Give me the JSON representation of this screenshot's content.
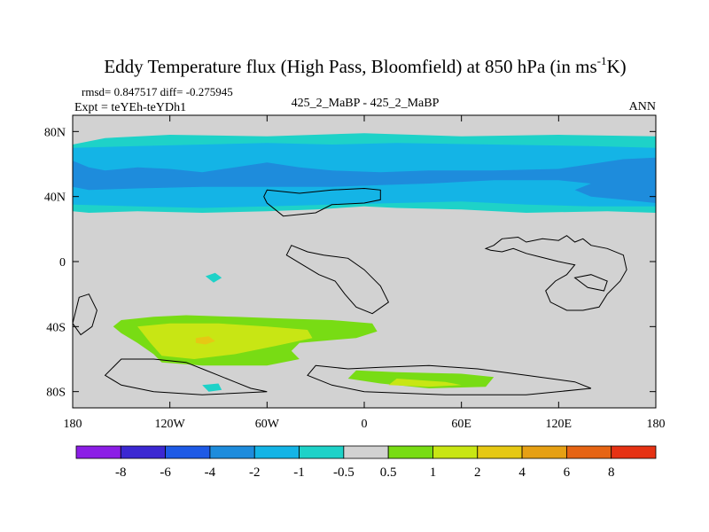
{
  "chart_data": {
    "type": "heatmap",
    "title_main": "Eddy Temperature flux (High Pass, Bloomfield) at 850 hPa (in ms",
    "title_sup": "-1",
    "title_end": "K)",
    "stats_line": "rmsd= 0.847517 diff= -0.275945",
    "expt_label": "Expt = teYEh-teYDh1",
    "case_label": "425_2_MaBP - 425_2_MaBP",
    "season": "ANN",
    "xlim": [
      -180,
      180
    ],
    "ylim": [
      -90,
      90
    ],
    "x_ticks": [
      {
        "value": -180,
        "label": "180"
      },
      {
        "value": -120,
        "label": "120W"
      },
      {
        "value": -60,
        "label": "60W"
      },
      {
        "value": 0,
        "label": "0"
      },
      {
        "value": 60,
        "label": "60E"
      },
      {
        "value": 120,
        "label": "120E"
      },
      {
        "value": 180,
        "label": "180"
      }
    ],
    "y_ticks": [
      {
        "value": 80,
        "label": "80N"
      },
      {
        "value": 40,
        "label": "40N"
      },
      {
        "value": 0,
        "label": "0"
      },
      {
        "value": -40,
        "label": "40S"
      },
      {
        "value": -80,
        "label": "80S"
      }
    ],
    "colorbar": {
      "boundaries": [
        "-8",
        "-6",
        "-4",
        "-2",
        "-1",
        "-0.5",
        "0.5",
        "1",
        "2",
        "4",
        "6",
        "8"
      ],
      "colors": [
        "#8c1ee6",
        "#3c28d2",
        "#1e5ae6",
        "#1e8cdc",
        "#14b4e6",
        "#1ed2c8",
        "#d2d2d2",
        "#78dc14",
        "#c8e614",
        "#e6c814",
        "#e6a014",
        "#e66414",
        "#e63214"
      ]
    },
    "fill_regions": [
      {
        "level": "-1 to -0.5",
        "color": "#1ed2c8",
        "lonlat": [
          [
            -180,
            72
          ],
          [
            -160,
            76
          ],
          [
            -120,
            78
          ],
          [
            -60,
            77
          ],
          [
            0,
            79
          ],
          [
            60,
            77
          ],
          [
            120,
            78
          ],
          [
            180,
            77
          ],
          [
            180,
            30
          ],
          [
            150,
            31
          ],
          [
            100,
            30
          ],
          [
            60,
            32
          ],
          [
            20,
            33
          ],
          [
            0,
            34
          ],
          [
            -30,
            32
          ],
          [
            -60,
            31
          ],
          [
            -100,
            30
          ],
          [
            -140,
            31
          ],
          [
            -170,
            30
          ],
          [
            -180,
            31
          ]
        ]
      },
      {
        "level": "-2 to -1",
        "color": "#14b4e6",
        "lonlat": [
          [
            -180,
            70
          ],
          [
            -140,
            71
          ],
          [
            -100,
            72
          ],
          [
            -60,
            73
          ],
          [
            -20,
            72
          ],
          [
            20,
            73
          ],
          [
            80,
            72
          ],
          [
            140,
            71
          ],
          [
            180,
            70
          ],
          [
            180,
            34
          ],
          [
            140,
            34
          ],
          [
            100,
            35
          ],
          [
            60,
            37
          ],
          [
            20,
            36
          ],
          [
            -20,
            35
          ],
          [
            -60,
            34
          ],
          [
            -100,
            33
          ],
          [
            -140,
            34
          ],
          [
            -180,
            35
          ]
        ]
      },
      {
        "level": "-4 to -2",
        "color": "#1e8cdc",
        "lonlat": [
          [
            -180,
            62
          ],
          [
            -170,
            58
          ],
          [
            -160,
            56
          ],
          [
            -140,
            58
          ],
          [
            -120,
            57
          ],
          [
            -100,
            55
          ],
          [
            -80,
            58
          ],
          [
            -60,
            61
          ],
          [
            -40,
            58
          ],
          [
            -20,
            56
          ],
          [
            10,
            55
          ],
          [
            40,
            56
          ],
          [
            80,
            56
          ],
          [
            120,
            57
          ],
          [
            140,
            60
          ],
          [
            160,
            63
          ],
          [
            180,
            64
          ],
          [
            180,
            36
          ],
          [
            160,
            38
          ],
          [
            140,
            40
          ],
          [
            130,
            44
          ],
          [
            140,
            48
          ],
          [
            120,
            50
          ],
          [
            80,
            50
          ],
          [
            40,
            48
          ],
          [
            10,
            47
          ],
          [
            -20,
            46
          ],
          [
            -60,
            46
          ],
          [
            -100,
            46
          ],
          [
            -140,
            45
          ],
          [
            -170,
            44
          ],
          [
            -180,
            46
          ]
        ]
      },
      {
        "level": "-1 to -0.5",
        "color": "#1ed2c8",
        "lonlat": [
          [
            -98,
            -9
          ],
          [
            -92,
            -7
          ],
          [
            -88,
            -10
          ],
          [
            -93,
            -13
          ]
        ]
      },
      {
        "level": "0.5 to 1",
        "color": "#78dc14",
        "lonlat": [
          [
            -150,
            -36
          ],
          [
            -130,
            -34
          ],
          [
            -110,
            -33
          ],
          [
            -80,
            -34
          ],
          [
            -50,
            -35
          ],
          [
            -20,
            -36
          ],
          [
            5,
            -38
          ],
          [
            8,
            -43
          ],
          [
            -5,
            -47
          ],
          [
            -40,
            -50
          ],
          [
            -45,
            -55
          ],
          [
            -40,
            -60
          ],
          [
            -60,
            -64
          ],
          [
            -100,
            -64
          ],
          [
            -125,
            -62
          ],
          [
            -130,
            -57
          ],
          [
            -140,
            -50
          ],
          [
            -150,
            -44
          ],
          [
            -155,
            -40
          ]
        ]
      },
      {
        "level": "1 to 2",
        "color": "#c8e614",
        "lonlat": [
          [
            -140,
            -40
          ],
          [
            -120,
            -38
          ],
          [
            -90,
            -38
          ],
          [
            -60,
            -40
          ],
          [
            -35,
            -42
          ],
          [
            -32,
            -47
          ],
          [
            -55,
            -52
          ],
          [
            -80,
            -57
          ],
          [
            -105,
            -60
          ],
          [
            -125,
            -58
          ],
          [
            -132,
            -50
          ]
        ]
      },
      {
        "level": "2 to 4",
        "color": "#e6c814",
        "lonlat": [
          [
            -104,
            -47
          ],
          [
            -96,
            -46
          ],
          [
            -92,
            -49
          ],
          [
            -98,
            -51
          ],
          [
            -104,
            -50
          ]
        ]
      },
      {
        "level": "0.5 to 1",
        "color": "#78dc14",
        "lonlat": [
          [
            -5,
            -67
          ],
          [
            20,
            -68
          ],
          [
            60,
            -69
          ],
          [
            80,
            -71
          ],
          [
            75,
            -77
          ],
          [
            40,
            -78
          ],
          [
            10,
            -75
          ],
          [
            -10,
            -72
          ]
        ]
      },
      {
        "level": "1 to 2",
        "color": "#c8e614",
        "lonlat": [
          [
            20,
            -72
          ],
          [
            50,
            -74
          ],
          [
            60,
            -76
          ],
          [
            40,
            -77
          ],
          [
            15,
            -76
          ]
        ]
      },
      {
        "level": "-1 to -0.5",
        "color": "#1ed2c8",
        "lonlat": [
          [
            -100,
            -76
          ],
          [
            -90,
            -75
          ],
          [
            -88,
            -79
          ],
          [
            -96,
            -80
          ]
        ]
      }
    ],
    "coastlines": [
      [
        [
          -60,
          44
        ],
        [
          -40,
          42
        ],
        [
          -20,
          44
        ],
        [
          0,
          45
        ],
        [
          10,
          44
        ],
        [
          10,
          38
        ],
        [
          0,
          36
        ],
        [
          -20,
          35
        ],
        [
          -30,
          30
        ],
        [
          -50,
          28
        ],
        [
          -55,
          32
        ],
        [
          -60,
          36
        ],
        [
          -62,
          40
        ]
      ],
      [
        [
          75,
          8
        ],
        [
          80,
          10
        ],
        [
          85,
          14
        ],
        [
          95,
          15
        ],
        [
          100,
          12
        ],
        [
          110,
          14
        ],
        [
          120,
          13
        ],
        [
          125,
          16
        ],
        [
          130,
          12
        ],
        [
          135,
          14
        ],
        [
          140,
          10
        ],
        [
          150,
          8
        ],
        [
          160,
          4
        ],
        [
          162,
          -5
        ],
        [
          158,
          -12
        ],
        [
          150,
          -20
        ],
        [
          145,
          -28
        ],
        [
          135,
          -30
        ],
        [
          125,
          -30
        ],
        [
          115,
          -25
        ],
        [
          112,
          -18
        ],
        [
          118,
          -12
        ],
        [
          125,
          -8
        ],
        [
          130,
          -2
        ],
        [
          120,
          0
        ],
        [
          108,
          3
        ],
        [
          100,
          5
        ],
        [
          92,
          8
        ],
        [
          85,
          6
        ],
        [
          78,
          7
        ]
      ],
      [
        [
          -45,
          10
        ],
        [
          -35,
          6
        ],
        [
          -25,
          4
        ],
        [
          -10,
          2
        ],
        [
          0,
          -5
        ],
        [
          10,
          -15
        ],
        [
          15,
          -25
        ],
        [
          5,
          -32
        ],
        [
          -5,
          -28
        ],
        [
          -12,
          -20
        ],
        [
          -18,
          -12
        ],
        [
          -28,
          -8
        ],
        [
          -38,
          -2
        ],
        [
          -48,
          4
        ]
      ],
      [
        [
          -176,
          -22
        ],
        [
          -170,
          -20
        ],
        [
          -165,
          -30
        ],
        [
          -168,
          -40
        ],
        [
          -175,
          -45
        ],
        [
          -180,
          -38
        ]
      ],
      [
        [
          -150,
          -60
        ],
        [
          -130,
          -60
        ],
        [
          -110,
          -62
        ],
        [
          -100,
          -66
        ],
        [
          -90,
          -70
        ],
        [
          -80,
          -74
        ],
        [
          -70,
          -78
        ],
        [
          -60,
          -80
        ],
        [
          -100,
          -82
        ],
        [
          -130,
          -80
        ],
        [
          -150,
          -76
        ],
        [
          -160,
          -70
        ]
      ],
      [
        [
          -30,
          -64
        ],
        [
          -10,
          -66
        ],
        [
          10,
          -65
        ],
        [
          40,
          -64
        ],
        [
          70,
          -66
        ],
        [
          100,
          -70
        ],
        [
          130,
          -74
        ],
        [
          140,
          -78
        ],
        [
          100,
          -82
        ],
        [
          50,
          -82
        ],
        [
          0,
          -80
        ],
        [
          -20,
          -76
        ],
        [
          -35,
          -70
        ]
      ],
      [
        [
          130,
          -10
        ],
        [
          140,
          -8
        ],
        [
          150,
          -12
        ],
        [
          148,
          -18
        ],
        [
          138,
          -16
        ]
      ]
    ]
  }
}
